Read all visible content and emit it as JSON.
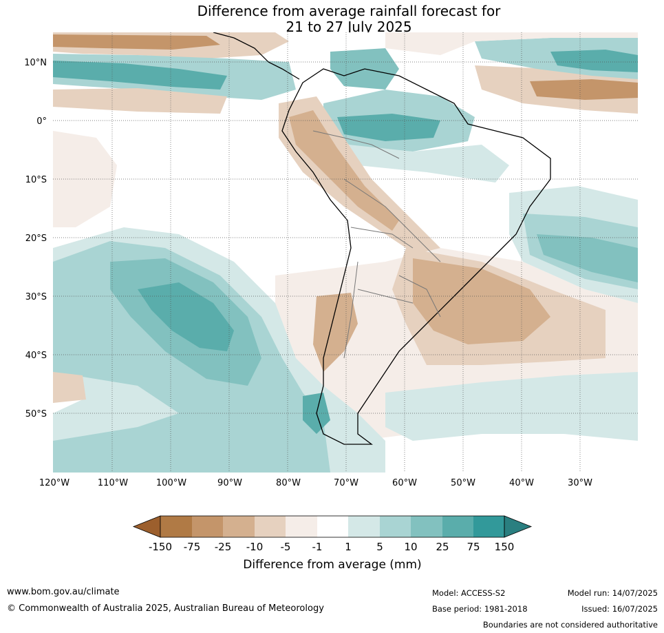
{
  "title": {
    "line1": "Difference from average rainfall forecast for",
    "line2": "21 to 27 July 2025"
  },
  "map": {
    "lat_ticks": [
      "10°N",
      "0°",
      "10°S",
      "20°S",
      "30°S",
      "40°S",
      "50°S"
    ],
    "lon_ticks": [
      "120°W",
      "110°W",
      "100°W",
      "90°W",
      "80°W",
      "70°W",
      "60°W",
      "50°W",
      "40°W",
      "30°W"
    ]
  },
  "legend": {
    "title": "Difference from average (mm)",
    "tick_labels": [
      "-150",
      "-75",
      "-25",
      "-10",
      "-5",
      "-1",
      "1",
      "5",
      "10",
      "25",
      "75",
      "150"
    ],
    "colors": [
      "#9c5f2d",
      "#b07a45",
      "#c4956a",
      "#d4b08f",
      "#e6d1bf",
      "#f5ede8",
      "#ffffff",
      "#d4e8e7",
      "#a9d4d3",
      "#82c1bf",
      "#5aadab",
      "#32999a",
      "#2a7f80"
    ]
  },
  "footer": {
    "website": "www.bom.gov.au/climate",
    "copyright": "© Commonwealth of Australia 2025, Australian Bureau of Meteorology",
    "model": "Model: ACCESS-S2",
    "base_period": "Base period: 1981-2018",
    "model_run": "Model run: 14/07/2025",
    "issued": "Issued: 16/07/2025",
    "disclaimer": "Boundaries are not considered authoritative"
  }
}
